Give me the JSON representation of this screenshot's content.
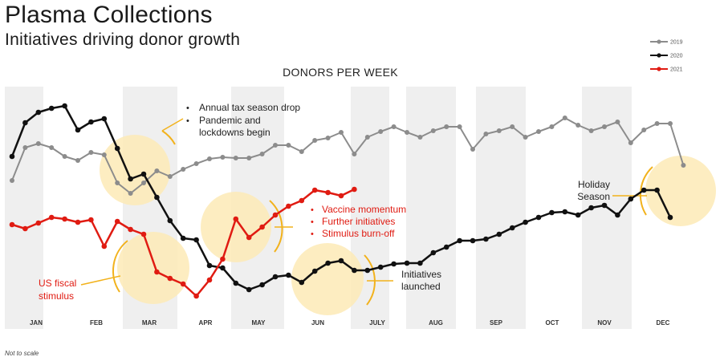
{
  "header": {
    "title": "Plasma Collections",
    "subtitle": "Initiatives driving donor growth"
  },
  "footnote": "Not to scale",
  "chart_data": {
    "type": "line",
    "title": "DONORS PER WEEK",
    "xlabel": "",
    "ylabel": "",
    "months": [
      "JAN",
      "FEB",
      "MAR",
      "APR",
      "MAY",
      "JUN",
      "JULY",
      "AUG",
      "SEP",
      "OCT",
      "NOV",
      "DEC"
    ],
    "legend_placement": "top-right",
    "grid": false,
    "series": [
      {
        "name": "2019",
        "color": "#8c8c8c",
        "values": [
          225,
          184,
          179,
          184,
          195,
          200,
          190,
          193,
          228,
          241,
          228,
          213,
          220,
          211,
          204,
          198,
          196,
          197,
          197,
          192,
          181,
          181,
          189,
          175,
          172,
          165,
          192,
          171,
          164,
          158,
          165,
          171,
          163,
          158,
          158,
          186,
          167,
          163,
          158,
          171,
          164,
          158,
          147,
          156,
          163,
          158,
          152,
          178,
          162,
          154,
          154,
          206
        ]
      },
      {
        "name": "2020",
        "color": "#111111",
        "values": [
          195,
          153,
          140,
          135,
          132,
          162,
          152,
          148,
          185,
          223,
          217,
          246,
          275,
          297,
          299,
          331,
          334,
          353,
          361,
          355,
          345,
          343,
          352,
          338,
          328,
          325,
          337,
          337,
          333,
          329,
          328,
          328,
          315,
          308,
          300,
          300,
          298,
          292,
          284,
          277,
          271,
          265,
          264,
          268,
          259,
          256,
          268,
          248,
          237,
          237,
          271
        ]
      },
      {
        "name": "2021",
        "color": "#e01b12",
        "values": [
          280,
          285,
          278,
          271,
          273,
          277,
          274,
          307,
          276,
          286,
          292,
          339,
          347,
          354,
          369,
          349,
          323,
          273,
          296,
          283,
          268,
          257,
          250,
          237,
          240,
          244,
          236
        ]
      }
    ],
    "annotations": {
      "tax_bullet_1": "Annual tax season drop",
      "tax_bullet_2": "Pandemic and",
      "tax_bullet_3": "lockdowns begin",
      "vaccine_1": "Vaccine momentum",
      "vaccine_2": "Further initiatives",
      "vaccine_3": "Stimulus burn-off",
      "us_fiscal_1": "US fiscal",
      "us_fiscal_2": "stimulus",
      "initiatives_1": "Initiatives",
      "initiatives_2": "launched",
      "holiday_1": "Holiday",
      "holiday_2": "Season",
      "bullet": "•"
    }
  }
}
